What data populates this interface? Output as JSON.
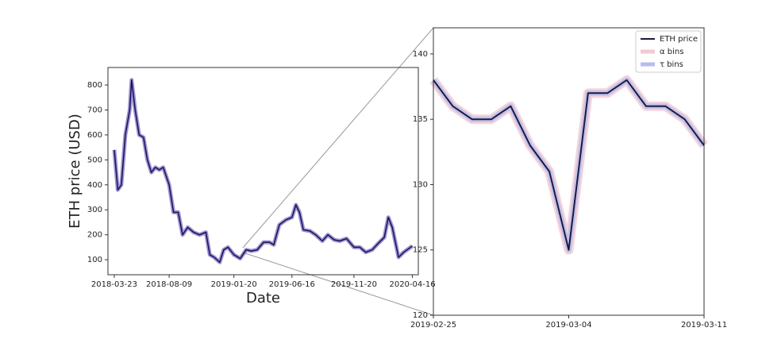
{
  "chart_data": [
    {
      "type": "line",
      "xlabel": "Date",
      "ylabel": "ETH price (USD)",
      "x": [
        "2018-03-23",
        "2018-04-01",
        "2018-04-10",
        "2018-04-20",
        "2018-05-01",
        "2018-05-06",
        "2018-05-15",
        "2018-05-25",
        "2018-06-05",
        "2018-06-15",
        "2018-06-25",
        "2018-07-05",
        "2018-07-15",
        "2018-07-25",
        "2018-08-09",
        "2018-08-20",
        "2018-09-01",
        "2018-09-12",
        "2018-09-25",
        "2018-10-10",
        "2018-10-25",
        "2018-11-10",
        "2018-11-20",
        "2018-12-01",
        "2018-12-15",
        "2018-12-25",
        "2019-01-05",
        "2019-01-20",
        "2019-02-05",
        "2019-02-20",
        "2019-03-05",
        "2019-03-20",
        "2019-04-05",
        "2019-04-20",
        "2019-05-01",
        "2019-05-15",
        "2019-06-01",
        "2019-06-16",
        "2019-06-26",
        "2019-07-05",
        "2019-07-15",
        "2019-08-01",
        "2019-08-15",
        "2019-09-01",
        "2019-09-15",
        "2019-10-01",
        "2019-10-15",
        "2019-11-01",
        "2019-11-20",
        "2019-12-05",
        "2019-12-20",
        "2020-01-05",
        "2020-01-20",
        "2020-02-05",
        "2020-02-15",
        "2020-02-25",
        "2020-03-12",
        "2020-03-25",
        "2020-04-16"
      ],
      "series": [
        {
          "color": "#1a0f5c",
          "values": [
            540,
            380,
            400,
            600,
            700,
            820,
            700,
            600,
            590,
            500,
            450,
            470,
            460,
            470,
            400,
            290,
            290,
            200,
            230,
            210,
            200,
            210,
            120,
            110,
            90,
            140,
            150,
            120,
            105,
            140,
            135,
            140,
            170,
            170,
            160,
            240,
            260,
            270,
            320,
            290,
            220,
            215,
            200,
            175,
            200,
            180,
            175,
            185,
            150,
            150,
            130,
            140,
            165,
            190,
            270,
            230,
            110,
            130,
            155
          ]
        }
      ],
      "xlim": [
        "2018-03-07",
        "2020-05-01"
      ],
      "xticks": [
        "2018-03-23",
        "2018-08-09",
        "2019-01-20",
        "2019-06-16",
        "2019-11-20",
        "2020-04-16"
      ],
      "ylim": [
        40,
        870
      ],
      "yticks": [
        100,
        200,
        300,
        400,
        500,
        600,
        700,
        800
      ]
    },
    {
      "type": "line",
      "x": [
        "2019-02-25",
        "2019-02-26",
        "2019-02-27",
        "2019-02-28",
        "2019-03-01",
        "2019-03-02",
        "2019-03-03",
        "2019-03-04",
        "2019-03-05",
        "2019-03-06",
        "2019-03-07",
        "2019-03-08",
        "2019-03-09",
        "2019-03-10",
        "2019-03-11"
      ],
      "series": [
        {
          "name": "α bins",
          "color": "#f4c9d2",
          "values": [
            138,
            136,
            135,
            135,
            136,
            133,
            131,
            125,
            137,
            137,
            138,
            136,
            136,
            135,
            133
          ]
        },
        {
          "name": "τ bins",
          "color": "#b7bcee",
          "values": [
            138,
            136,
            135,
            135,
            136,
            133,
            131,
            125,
            137,
            137,
            138,
            136,
            136,
            135,
            133
          ]
        },
        {
          "name": "ETH price",
          "color": "#1a1a40",
          "values": [
            138,
            136,
            135,
            135,
            136,
            133,
            131,
            125,
            137,
            137,
            138,
            136,
            136,
            135,
            133
          ]
        }
      ],
      "xlim": [
        "2019-02-25",
        "2019-03-11"
      ],
      "xticks": [
        "2019-02-25",
        "2019-03-04",
        "2019-03-11"
      ],
      "ylim": [
        120,
        142
      ],
      "yticks": [
        120,
        125,
        130,
        135,
        140
      ],
      "legend": "upper right"
    }
  ]
}
